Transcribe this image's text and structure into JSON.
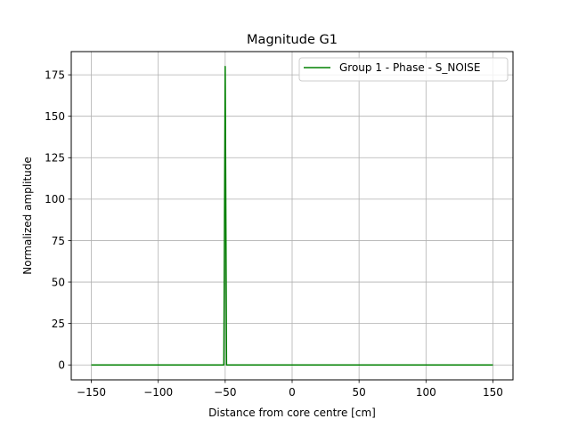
{
  "chart_data": {
    "type": "line",
    "title": "Magnitude G1",
    "xlabel": "Distance from core centre [cm]",
    "ylabel": "Normalized amplitude",
    "xlim": [
      -165,
      165
    ],
    "ylim": [
      -9,
      189
    ],
    "xticks": [
      -150,
      -100,
      -50,
      0,
      50,
      100,
      150
    ],
    "xtick_labels": [
      "−150",
      "−100",
      "−50",
      "0",
      "50",
      "100",
      "150"
    ],
    "yticks": [
      0,
      25,
      50,
      75,
      100,
      125,
      150,
      175
    ],
    "ytick_labels": [
      "0",
      "25",
      "50",
      "75",
      "100",
      "125",
      "150",
      "175"
    ],
    "grid": true,
    "legend_position": "top-right",
    "series": [
      {
        "name": "Group 1 - Phase - S_NOISE",
        "color": "#008000",
        "x": [
          -150,
          -51,
          -50,
          -49,
          150
        ],
        "y": [
          0,
          0,
          180,
          0,
          0
        ]
      }
    ]
  }
}
